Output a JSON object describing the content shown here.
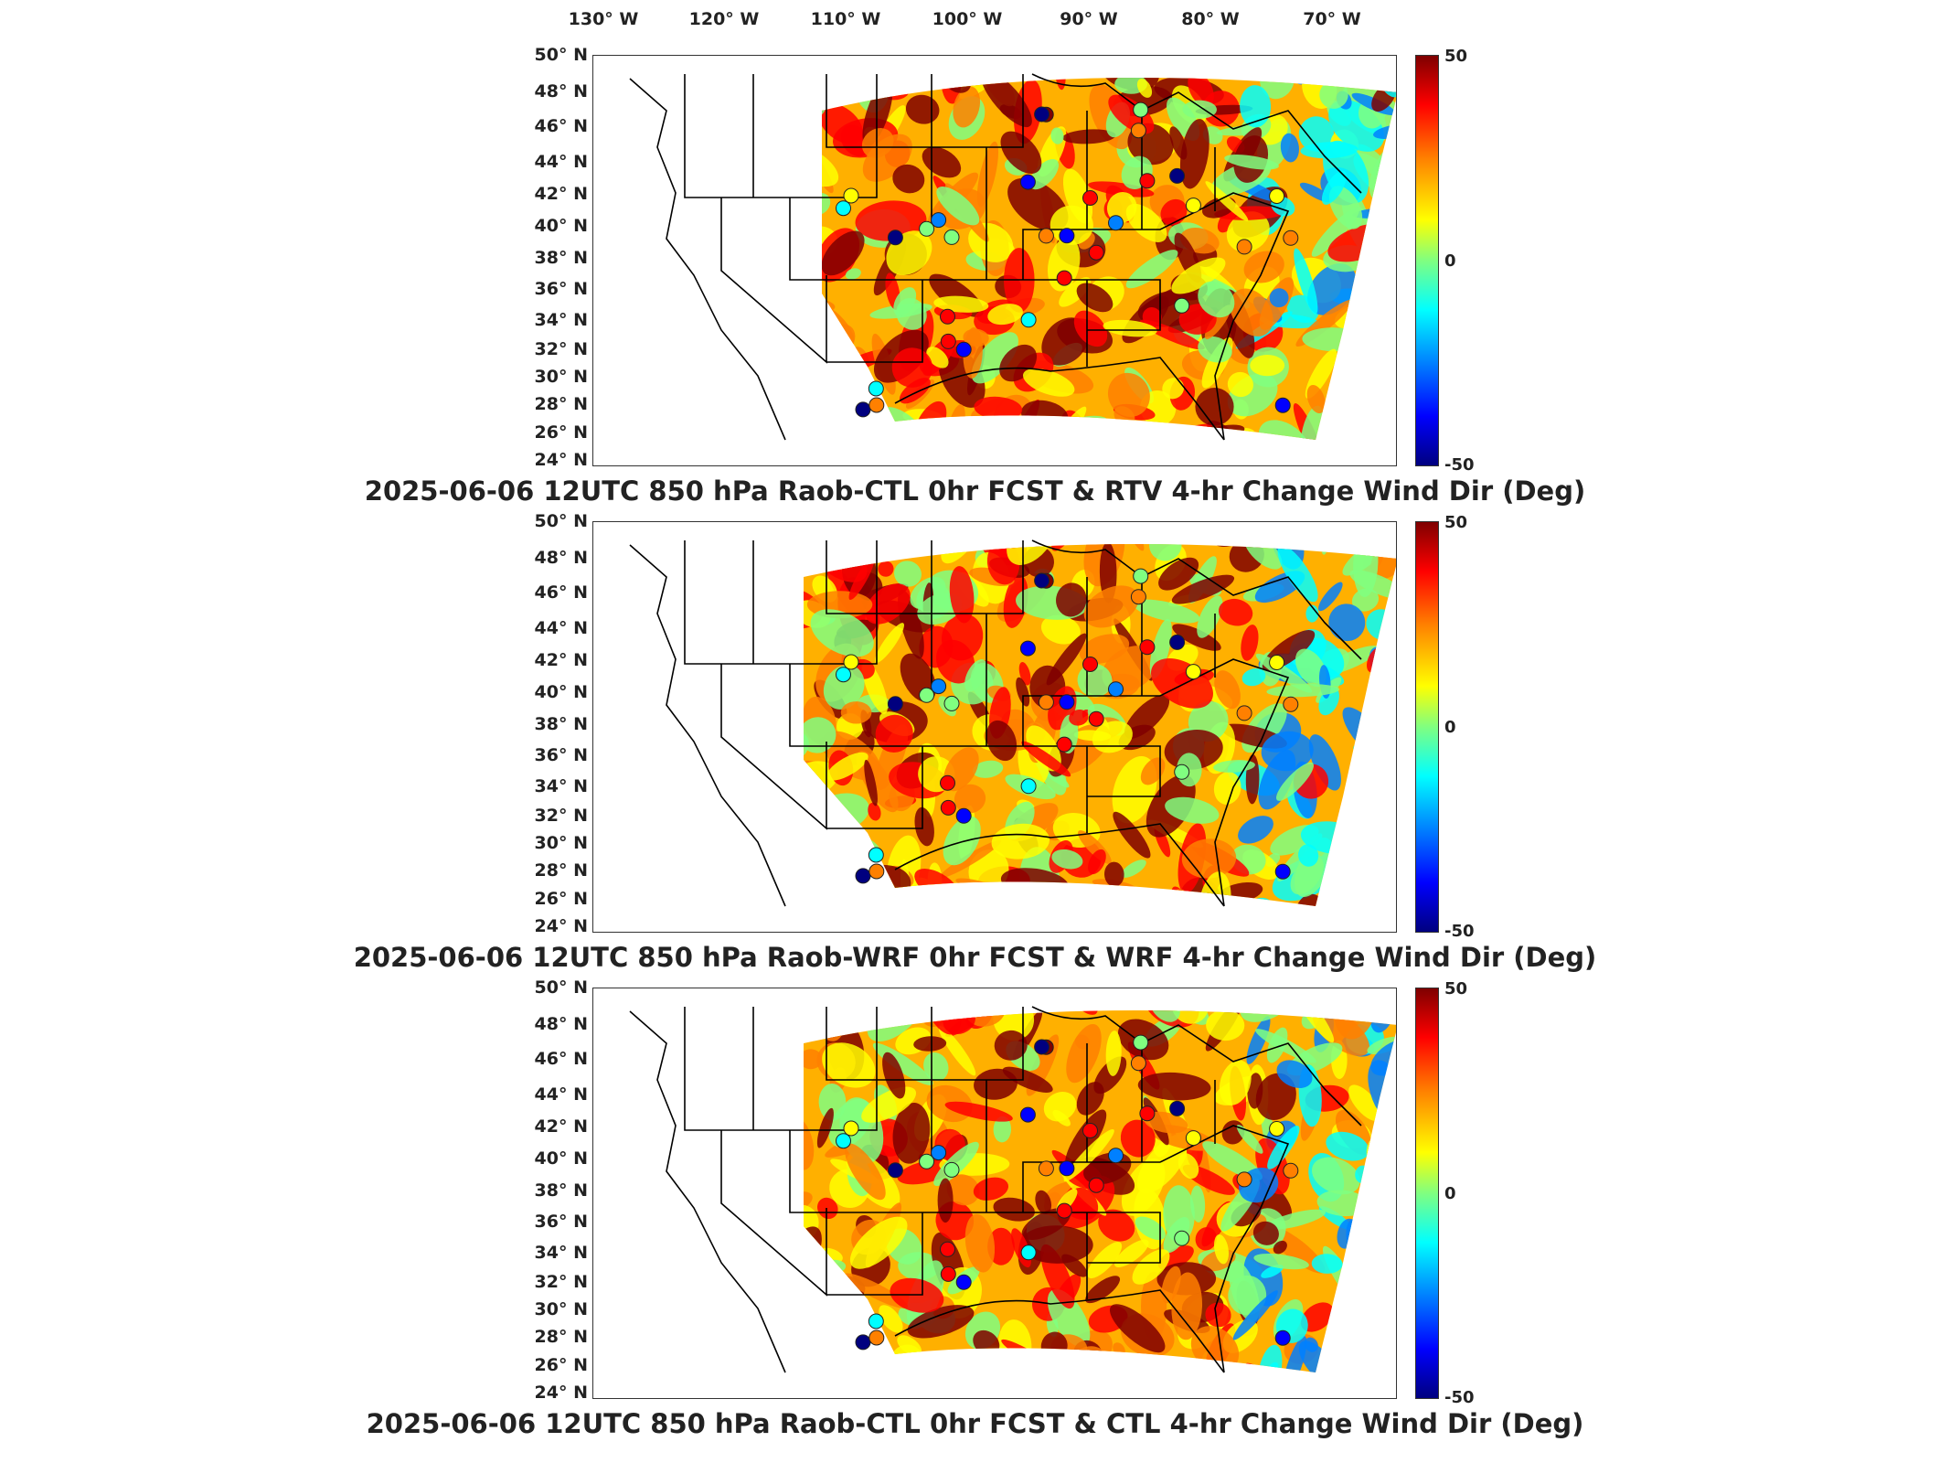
{
  "lon_labels": [
    "130° W",
    "120° W",
    "110° W",
    "100° W",
    "90° W",
    "80° W",
    "70° W"
  ],
  "lat_labels": [
    "50° N",
    "48° N",
    "46° N",
    "44° N",
    "42° N",
    "40° N",
    "38° N",
    "36° N",
    "34° N",
    "32° N",
    "30° N",
    "28° N",
    "26° N",
    "24° N"
  ],
  "colorbar": {
    "max": "50",
    "mid": "0",
    "min": "-50",
    "colors": [
      "#7f0000",
      "#ff0000",
      "#ff8000",
      "#ffff00",
      "#80ff80",
      "#00ffff",
      "#0080ff",
      "#0000ff",
      "#00007f"
    ]
  },
  "panels": [
    {
      "title": "2025-06-06 12UTC 850 hPa Raob-CTL 0hr FCST & RTV 4-hr Change Wind Dir (Deg)"
    },
    {
      "title": "2025-06-06 12UTC 850 hPa Raob-WRF 0hr FCST & WRF 4-hr Change Wind Dir (Deg)"
    },
    {
      "title": "2025-06-06 12UTC 850 hPa Raob-CTL 0hr FCST & CTL 4-hr Change Wind Dir (Deg)"
    }
  ]
}
